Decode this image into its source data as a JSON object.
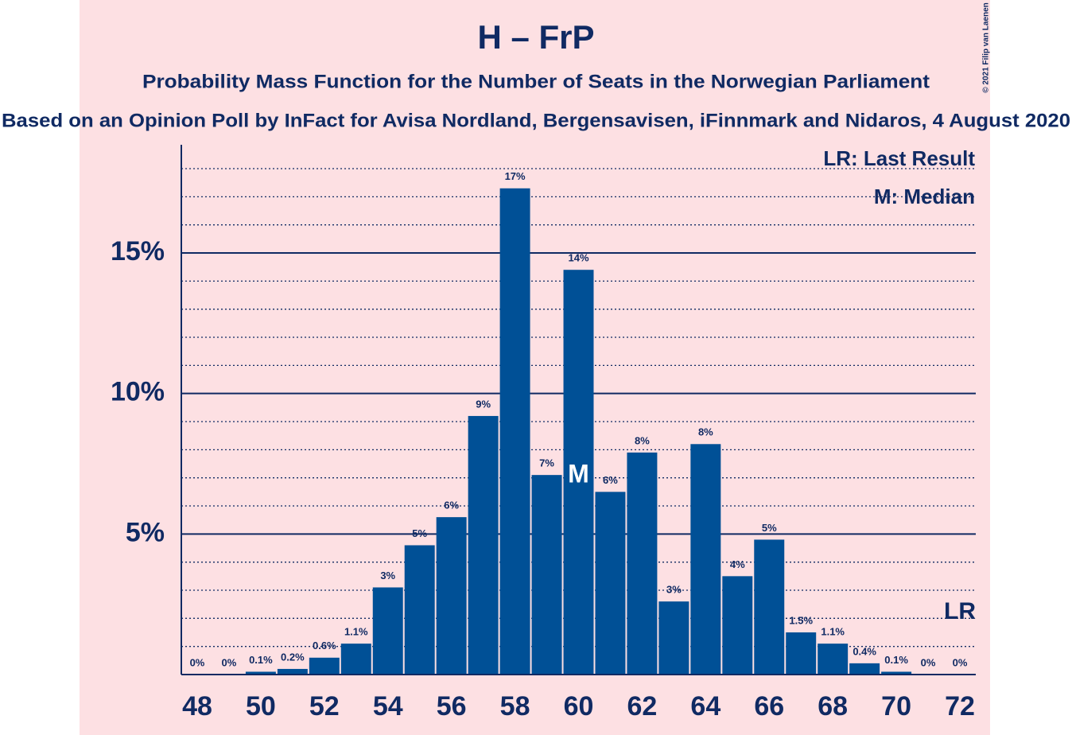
{
  "chart_data": {
    "type": "bar",
    "title": "H – FrP",
    "subtitle": "Probability Mass Function for the Number of Seats in the Norwegian Parliament",
    "subtitle2": "Based on an Opinion Poll by InFact for Avisa Nordland, Bergensavisen, iFinnmark and Nidaros, 4 August 2020",
    "copyright": "© 2021 Filip van Laenen",
    "legend": [
      "LR: Last Result",
      "M: Median"
    ],
    "median": {
      "x": 60,
      "label": "M"
    },
    "last_result": {
      "x": 72,
      "label": "LR"
    },
    "x": [
      48,
      49,
      50,
      51,
      52,
      53,
      54,
      55,
      56,
      57,
      58,
      59,
      60,
      61,
      62,
      63,
      64,
      65,
      66,
      67,
      68,
      69,
      70,
      71,
      72
    ],
    "values": [
      0,
      0,
      0.1,
      0.2,
      0.6,
      1.1,
      3.1,
      4.6,
      5.6,
      9.2,
      17.3,
      7.1,
      14.4,
      6.5,
      7.9,
      2.6,
      8.2,
      3.5,
      4.8,
      1.5,
      1.1,
      0.4,
      0.1,
      0,
      0
    ],
    "value_labels": [
      "0%",
      "0%",
      "0.1%",
      "0.2%",
      "0.6%",
      "1.1%",
      "3%",
      "5%",
      "6%",
      "9%",
      "17%",
      "7%",
      "14%",
      "6%",
      "8%",
      "3%",
      "8%",
      "4%",
      "5%",
      "1.5%",
      "1.1%",
      "0.4%",
      "0.1%",
      "0%",
      "0%"
    ],
    "color": "#005096",
    "xlim": [
      47.5,
      72.5
    ],
    "xticks": [
      48,
      50,
      52,
      54,
      56,
      58,
      60,
      62,
      64,
      66,
      68,
      70,
      72
    ],
    "ylim": [
      0,
      18.85
    ],
    "yticks": [
      {
        "value": 5,
        "label": "5%"
      },
      {
        "value": 10,
        "label": "10%"
      },
      {
        "value": 15,
        "label": "15%"
      }
    ],
    "minor_grid": [
      1,
      2,
      3,
      4,
      6,
      7,
      8,
      9,
      11,
      12,
      13,
      14,
      16,
      17,
      18
    ],
    "grid": true
  }
}
